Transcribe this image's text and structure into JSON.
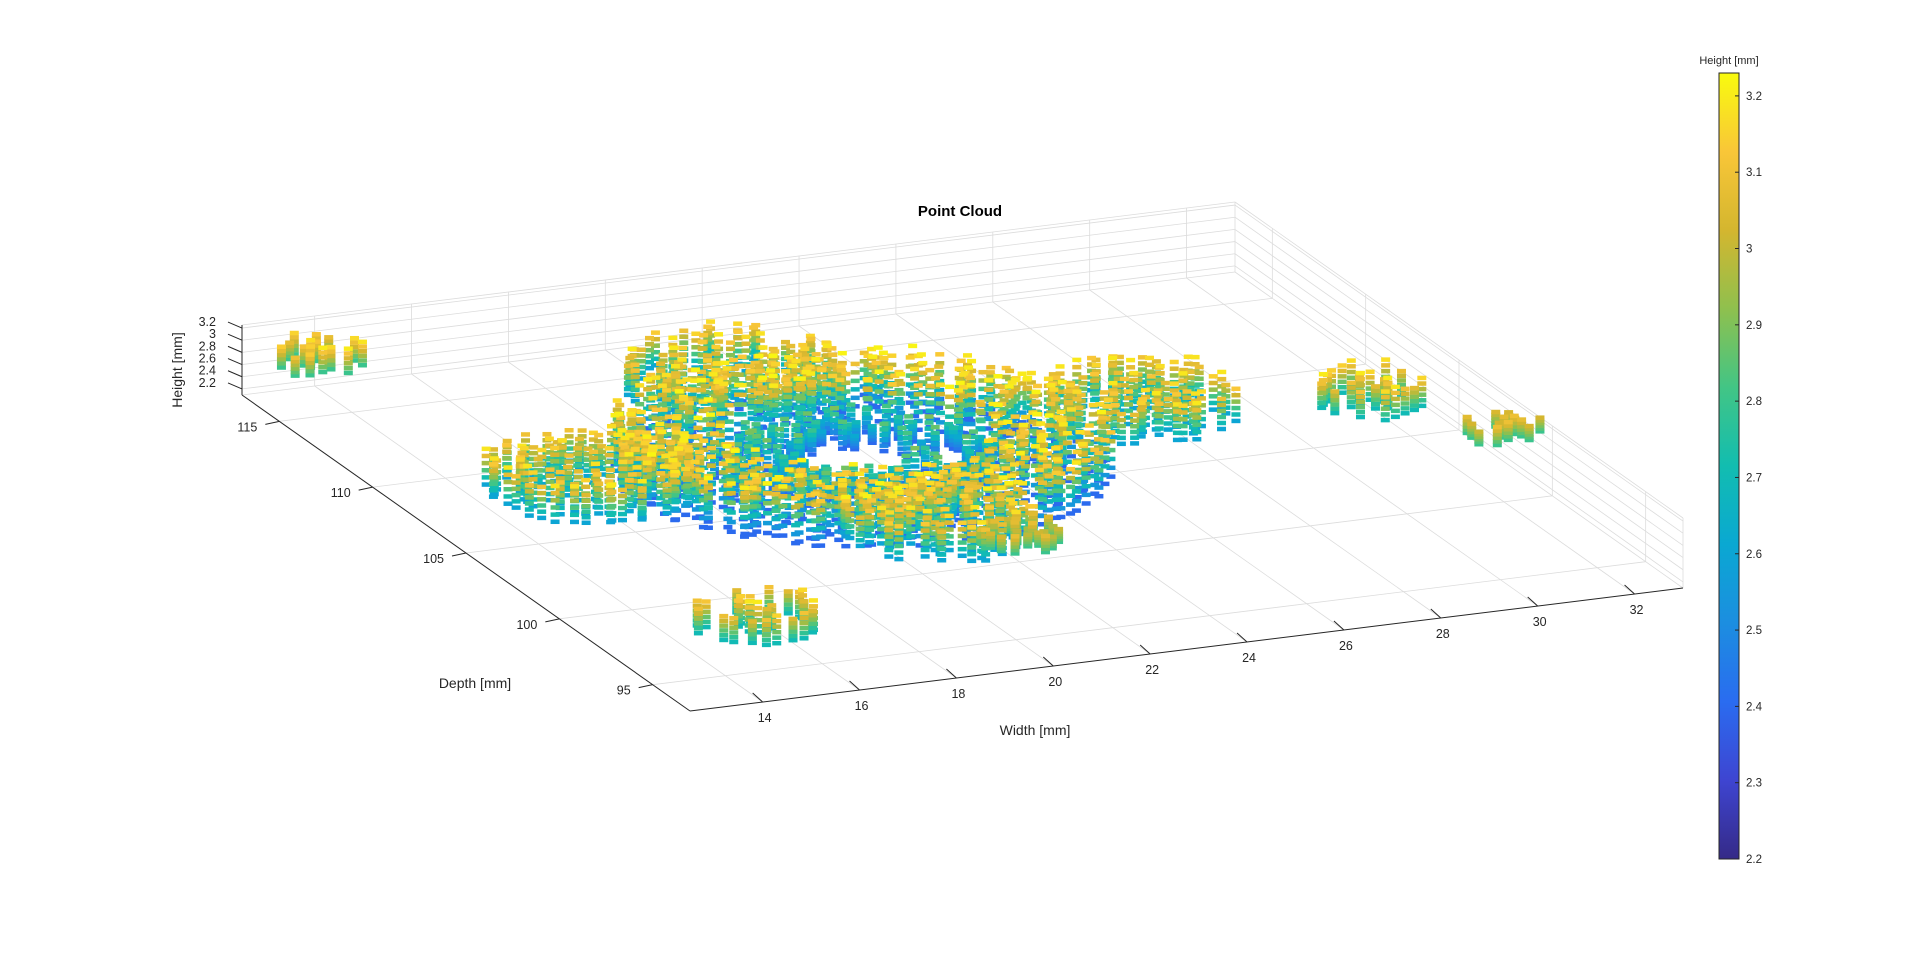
{
  "chart_data": {
    "type": "scatter3d",
    "title": "Point Cloud",
    "xlabel": "Width [mm]",
    "ylabel": "Depth [mm]",
    "zlabel": "Height [mm]",
    "x_ticks": [
      14,
      16,
      18,
      20,
      22,
      24,
      26,
      28,
      30,
      32
    ],
    "y_ticks": [
      95,
      100,
      105,
      110,
      115
    ],
    "z_ticks": [
      2.2,
      2.4,
      2.6,
      2.8,
      3,
      3.2
    ],
    "xlim": [
      12.5,
      33
    ],
    "ylim": [
      93,
      117
    ],
    "zlim": [
      2.1,
      3.25
    ],
    "grid": true,
    "colormap": "parula",
    "colorbar": {
      "title": "Height [mm]",
      "ticks": [
        2.2,
        2.3,
        2.4,
        2.5,
        2.6,
        2.7,
        2.8,
        2.9,
        3,
        3.1,
        3.2
      ],
      "range": [
        2.2,
        3.23
      ]
    },
    "clusters": [
      {
        "name": "central-ring",
        "x": 21.0,
        "y": 106.0,
        "r": 4.5,
        "zmin": 2.4,
        "zmax": 3.22
      },
      {
        "name": "left-ring",
        "x": 15.5,
        "y": 106.0,
        "r": 1.8,
        "zmin": 2.6,
        "zmax": 3.2
      },
      {
        "name": "right-ring",
        "x": 27.0,
        "y": 106.5,
        "r": 1.6,
        "zmin": 2.6,
        "zmax": 3.2
      },
      {
        "name": "upper-ring",
        "x": 20.5,
        "y": 111.5,
        "r": 1.8,
        "zmin": 2.6,
        "zmax": 3.2
      },
      {
        "name": "lower-ring",
        "x": 20.5,
        "y": 100.5,
        "r": 1.6,
        "zmin": 2.6,
        "zmax": 3.2
      },
      {
        "name": "corner-top-left",
        "x": 13.5,
        "y": 115.5,
        "r": 0.6,
        "zmin": 2.8,
        "zmax": 3.2
      },
      {
        "name": "corner-bottom-left",
        "x": 14.8,
        "y": 95.5,
        "r": 0.9,
        "zmin": 2.7,
        "zmax": 3.2
      },
      {
        "name": "far-right-a",
        "x": 31.2,
        "y": 105.0,
        "r": 0.8,
        "zmin": 2.7,
        "zmax": 3.2
      },
      {
        "name": "far-right-b",
        "x": 32.6,
        "y": 101.5,
        "r": 0.5,
        "zmin": 2.8,
        "zmax": 3.1
      },
      {
        "name": "small-bottom",
        "x": 21.5,
        "y": 98.5,
        "r": 0.6,
        "zmin": 2.8,
        "zmax": 3.1
      }
    ]
  }
}
